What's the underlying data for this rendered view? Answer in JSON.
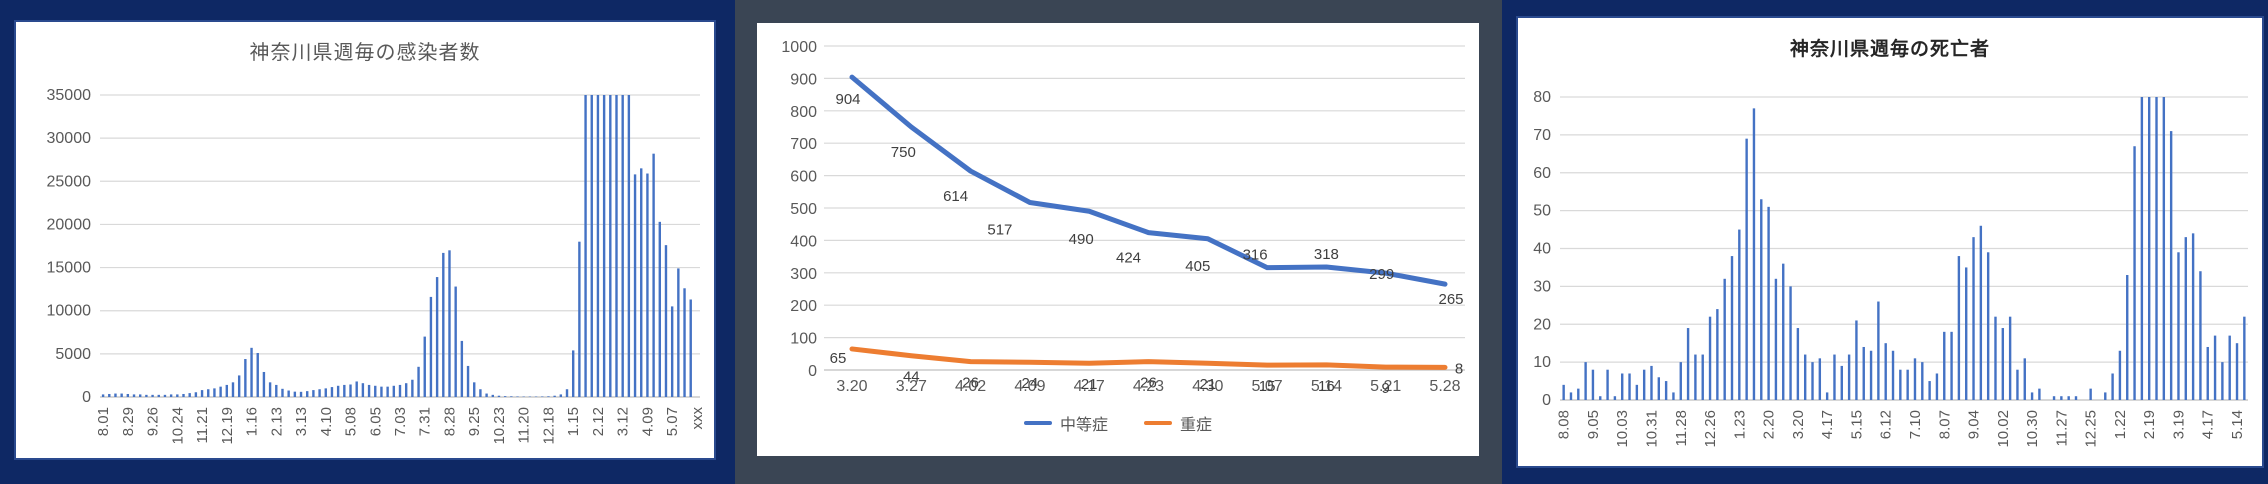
{
  "app": {
    "background": "#0E2864",
    "panel_dark": "#3A4554",
    "panel_light": "#FFFFFF"
  },
  "colors": {
    "accent_blue": "#4472C4",
    "accent_orange": "#ED7D31",
    "grid": "#D9D9D9",
    "axis": "#BFBFBF",
    "tick_text": "#595959",
    "title_text": "#595959",
    "title_text_bold": "#262626",
    "data_label": "#3F3F3F"
  },
  "chart_data": [
    {
      "type": "bar",
      "title": "神奈川県週毎の感染者数",
      "xlabel": "",
      "ylabel": "",
      "ylim": [
        0,
        35000
      ],
      "ytick_step": 5000,
      "grid": true,
      "clipped_at_ymax": true,
      "x_tick_labels": [
        "8.01",
        "8.29",
        "9.26",
        "10.24",
        "11.21",
        "12.19",
        "1.16",
        "2.13",
        "3.13",
        "4.10",
        "5.08",
        "6.05",
        "7.03",
        "7.31",
        "8.28",
        "9.25",
        "10.23",
        "11.20",
        "12.18",
        "1.15",
        "2.12",
        "3.12",
        "4.09",
        "5.07",
        "xxx"
      ],
      "values": [
        300,
        350,
        400,
        400,
        350,
        300,
        300,
        250,
        250,
        250,
        250,
        300,
        300,
        350,
        450,
        550,
        800,
        900,
        1000,
        1200,
        1400,
        1700,
        2500,
        4400,
        5700,
        5100,
        2900,
        1700,
        1400,
        950,
        750,
        620,
        600,
        680,
        800,
        900,
        1000,
        1150,
        1300,
        1400,
        1450,
        1800,
        1600,
        1400,
        1300,
        1200,
        1200,
        1300,
        1400,
        1600,
        2000,
        3500,
        7000,
        11600,
        13900,
        16700,
        17000,
        12800,
        6500,
        3600,
        1700,
        900,
        400,
        250,
        150,
        100,
        80,
        60,
        50,
        50,
        50,
        60,
        80,
        150,
        300,
        900,
        5400,
        18000,
        35000,
        35000,
        35000,
        35000,
        35000,
        35000,
        35000,
        35000,
        25800,
        26500,
        25900,
        28200,
        20300,
        17600,
        10500,
        14900,
        12600,
        11300,
        0
      ]
    },
    {
      "type": "line",
      "title": "",
      "xlabel": "",
      "ylabel": "",
      "ylim": [
        0,
        1000
      ],
      "ytick_step": 100,
      "grid": true,
      "legend_position": "bottom",
      "data_labels": true,
      "categories": [
        "3.20",
        "3.27",
        "4.02",
        "4.09",
        "4.17",
        "4.23",
        "4.30",
        "5.07",
        "5.14",
        "5.21",
        "5.28"
      ],
      "series": [
        {
          "name": "中等症",
          "color": "#4472C4",
          "values": [
            904,
            750,
            614,
            517,
            490,
            424,
            405,
            316,
            318,
            299,
            265
          ]
        },
        {
          "name": "重症",
          "color": "#ED7D31",
          "values": [
            65,
            44,
            26,
            24,
            21,
            26,
            21,
            15,
            16,
            9,
            8
          ]
        }
      ]
    },
    {
      "type": "bar",
      "title": "神奈川県週毎の死亡者",
      "xlabel": "",
      "ylabel": "",
      "ylim": [
        0,
        80
      ],
      "ytick_step": 10,
      "grid": true,
      "clipped_at_ymax": true,
      "x_tick_labels": [
        "8.08",
        "9.05",
        "10.03",
        "10.31",
        "11.28",
        "12.26",
        "1.23",
        "2.20",
        "3.20",
        "4.17",
        "5.15",
        "6.12",
        "7.10",
        "8.07",
        "9.04",
        "10.02",
        "10.30",
        "11.27",
        "12.25",
        "1.22",
        "2.19",
        "3.19",
        "4.17",
        "5.14"
      ],
      "values": [
        4,
        2,
        3,
        10,
        8,
        1,
        8,
        1,
        7,
        7,
        4,
        8,
        9,
        6,
        5,
        2,
        10,
        19,
        12,
        12,
        22,
        24,
        32,
        38,
        45,
        69,
        77,
        53,
        51,
        32,
        36,
        30,
        19,
        12,
        10,
        11,
        2,
        12,
        9,
        12,
        21,
        14,
        13,
        26,
        15,
        13,
        8,
        8,
        11,
        10,
        5,
        7,
        18,
        18,
        38,
        35,
        43,
        46,
        39,
        22,
        19,
        22,
        8,
        11,
        2,
        3,
        0,
        1,
        1,
        1,
        1,
        0,
        3,
        0,
        2,
        7,
        13,
        33,
        67,
        80,
        80,
        80,
        80,
        71,
        39,
        43,
        44,
        34,
        14,
        17,
        10,
        17,
        15,
        22
      ]
    }
  ]
}
